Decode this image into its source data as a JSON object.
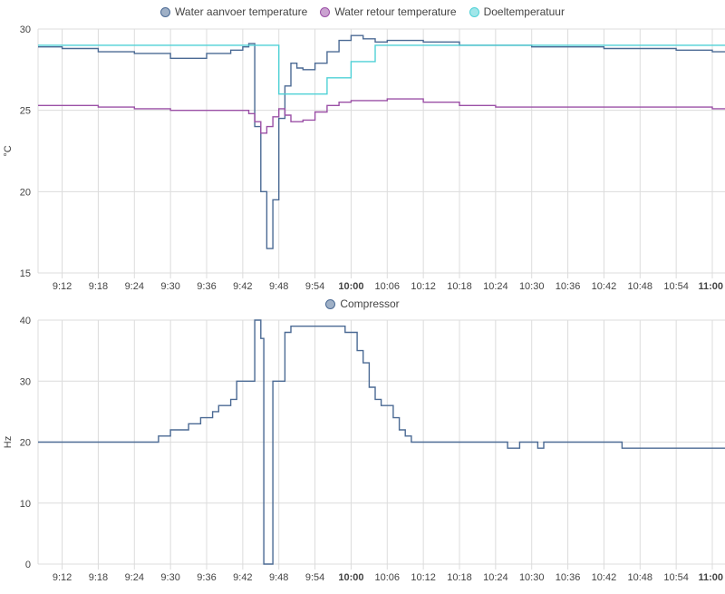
{
  "chart_data": [
    {
      "type": "line",
      "ylabel": "°C",
      "ylim": [
        15,
        30
      ],
      "yticks": [
        15,
        20,
        25,
        30
      ],
      "xlim": [
        "9:08",
        "11:00"
      ],
      "xticks": [
        "9:12",
        "9:18",
        "9:24",
        "9:30",
        "9:36",
        "9:42",
        "9:48",
        "9:54",
        "10:00",
        "10:06",
        "10:12",
        "10:18",
        "10:24",
        "10:30",
        "10:36",
        "10:42",
        "10:48",
        "10:54",
        "11:00"
      ],
      "bold_xticks": [
        "10:00",
        "11:00"
      ],
      "legend_position": "top-center",
      "grid": true,
      "series": [
        {
          "name": "Water aanvoer temperature",
          "color": "#4b6a94",
          "step": true,
          "points": [
            [
              "9:08",
              28.9
            ],
            [
              "9:12",
              28.8
            ],
            [
              "9:18",
              28.6
            ],
            [
              "9:24",
              28.5
            ],
            [
              "9:30",
              28.2
            ],
            [
              "9:36",
              28.5
            ],
            [
              "9:40",
              28.7
            ],
            [
              "9:42",
              28.9
            ],
            [
              "9:43",
              29.1
            ],
            [
              "9:44",
              24.0
            ],
            [
              "9:45",
              20.0
            ],
            [
              "9:46",
              16.5
            ],
            [
              "9:47",
              19.5
            ],
            [
              "9:48",
              24.5
            ],
            [
              "9:49",
              26.5
            ],
            [
              "9:50",
              27.9
            ],
            [
              "9:51",
              27.6
            ],
            [
              "9:52",
              27.5
            ],
            [
              "9:54",
              27.9
            ],
            [
              "9:56",
              28.6
            ],
            [
              "9:58",
              29.3
            ],
            [
              "10:00",
              29.6
            ],
            [
              "10:02",
              29.4
            ],
            [
              "10:04",
              29.2
            ],
            [
              "10:06",
              29.3
            ],
            [
              "10:12",
              29.2
            ],
            [
              "10:18",
              29.0
            ],
            [
              "10:24",
              29.0
            ],
            [
              "10:30",
              28.9
            ],
            [
              "10:36",
              28.9
            ],
            [
              "10:42",
              28.8
            ],
            [
              "10:48",
              28.8
            ],
            [
              "10:54",
              28.7
            ],
            [
              "11:00",
              28.6
            ]
          ]
        },
        {
          "name": "Water retour temperature",
          "color": "#9b50a6",
          "step": true,
          "points": [
            [
              "9:08",
              25.3
            ],
            [
              "9:18",
              25.2
            ],
            [
              "9:24",
              25.1
            ],
            [
              "9:30",
              25.0
            ],
            [
              "9:42",
              25.0
            ],
            [
              "9:43",
              24.8
            ],
            [
              "9:44",
              24.3
            ],
            [
              "9:45",
              23.6
            ],
            [
              "9:46",
              24.0
            ],
            [
              "9:47",
              24.6
            ],
            [
              "9:48",
              25.1
            ],
            [
              "9:49",
              24.7
            ],
            [
              "9:50",
              24.3
            ],
            [
              "9:52",
              24.4
            ],
            [
              "9:54",
              24.9
            ],
            [
              "9:56",
              25.3
            ],
            [
              "9:58",
              25.5
            ],
            [
              "10:00",
              25.6
            ],
            [
              "10:06",
              25.7
            ],
            [
              "10:12",
              25.5
            ],
            [
              "10:18",
              25.3
            ],
            [
              "10:24",
              25.2
            ],
            [
              "10:36",
              25.2
            ],
            [
              "10:48",
              25.2
            ],
            [
              "11:00",
              25.1
            ]
          ]
        },
        {
          "name": "Doeltemperatuur",
          "color": "#4fd1d6",
          "step": true,
          "points": [
            [
              "9:08",
              29.0
            ],
            [
              "9:48",
              26.0
            ],
            [
              "9:56",
              27.0
            ],
            [
              "10:00",
              28.0
            ],
            [
              "10:04",
              29.0
            ],
            [
              "11:00",
              29.0
            ]
          ]
        }
      ]
    },
    {
      "type": "line",
      "ylabel": "Hz",
      "ylim": [
        0,
        40
      ],
      "yticks": [
        0,
        10,
        20,
        30,
        40
      ],
      "xlim": [
        "9:08",
        "11:00"
      ],
      "xticks": [
        "9:12",
        "9:18",
        "9:24",
        "9:30",
        "9:36",
        "9:42",
        "9:48",
        "9:54",
        "10:00",
        "10:06",
        "10:12",
        "10:18",
        "10:24",
        "10:30",
        "10:36",
        "10:42",
        "10:48",
        "10:54",
        "11:00"
      ],
      "bold_xticks": [
        "10:00",
        "11:00"
      ],
      "legend_position": "top-center",
      "grid": true,
      "series": [
        {
          "name": "Compressor",
          "color": "#4b6a94",
          "step": true,
          "points": [
            [
              "9:08",
              20
            ],
            [
              "9:28",
              21
            ],
            [
              "9:30",
              22
            ],
            [
              "9:33",
              23
            ],
            [
              "9:35",
              24
            ],
            [
              "9:37",
              25
            ],
            [
              "9:38",
              26
            ],
            [
              "9:40",
              27
            ],
            [
              "9:41",
              30
            ],
            [
              "9:44",
              40
            ],
            [
              "9:45",
              37
            ],
            [
              "9:45.5",
              0
            ],
            [
              "9:47",
              30
            ],
            [
              "9:49",
              38
            ],
            [
              "9:50",
              39
            ],
            [
              "9:59",
              38
            ],
            [
              "10:01",
              35
            ],
            [
              "10:02",
              33
            ],
            [
              "10:03",
              29
            ],
            [
              "10:04",
              27
            ],
            [
              "10:05",
              26
            ],
            [
              "10:07",
              24
            ],
            [
              "10:08",
              22
            ],
            [
              "10:09",
              21
            ],
            [
              "10:10",
              20
            ],
            [
              "10:26",
              19
            ],
            [
              "10:28",
              20
            ],
            [
              "10:31",
              19
            ],
            [
              "10:32",
              20
            ],
            [
              "10:45",
              19
            ],
            [
              "11:00",
              19
            ]
          ]
        }
      ]
    }
  ]
}
